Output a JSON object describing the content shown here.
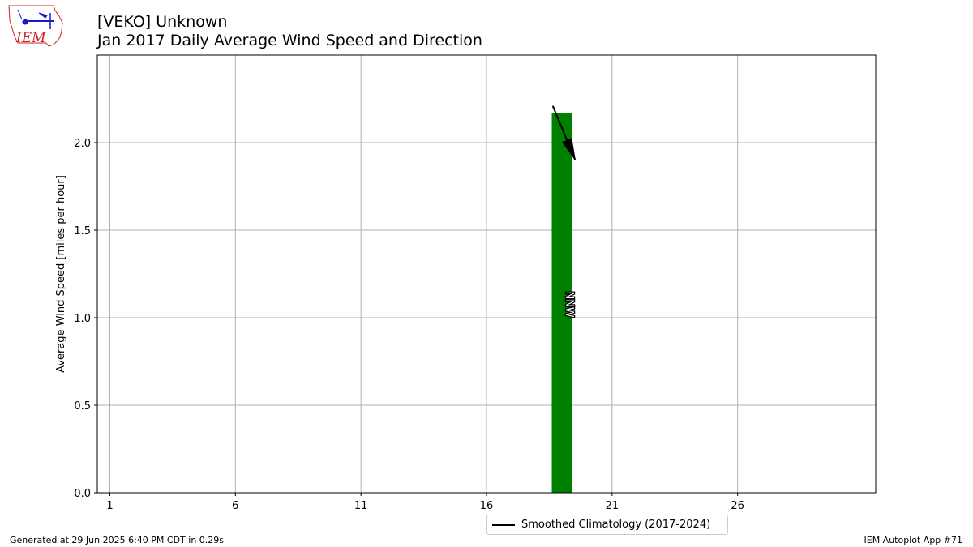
{
  "header": {
    "title_line1": "[VEKO] Unknown",
    "title_line2": "Jan 2017 Daily Average Wind Speed and Direction",
    "logo_text": "IEM"
  },
  "footer": {
    "generated": "Generated at 29 Jun 2025 6:40 PM CDT in 0.29s",
    "app": "IEM Autoplot App #71"
  },
  "colors": {
    "bar": "#008000",
    "grid": "#b0b0b0",
    "logo_red": "#cc2222",
    "logo_blue": "#1a1acc"
  },
  "chart_data": {
    "type": "bar",
    "title": "[VEKO] Unknown\nJan 2017 Daily Average Wind Speed and Direction",
    "xlabel": "",
    "ylabel": "Average Wind Speed [miles per hour]",
    "x_ticks": [
      1,
      6,
      11,
      16,
      21,
      26
    ],
    "xlim": [
      0.5,
      31.5
    ],
    "y_ticks": [
      "0.0",
      "0.5",
      "1.0",
      "1.5",
      "2.0"
    ],
    "ylim": [
      0,
      2.5
    ],
    "grid": true,
    "bars": [
      {
        "day": 19,
        "value": 2.17,
        "direction_label": "NNW",
        "arrow_direction_deg": 337.5
      }
    ],
    "series": [
      {
        "name": "Smoothed Climatology (2017-2024)",
        "type": "line",
        "color": "#000000",
        "values": []
      }
    ],
    "legend": {
      "position": "bottom-center",
      "entries": [
        "Smoothed Climatology (2017-2024)"
      ]
    }
  }
}
